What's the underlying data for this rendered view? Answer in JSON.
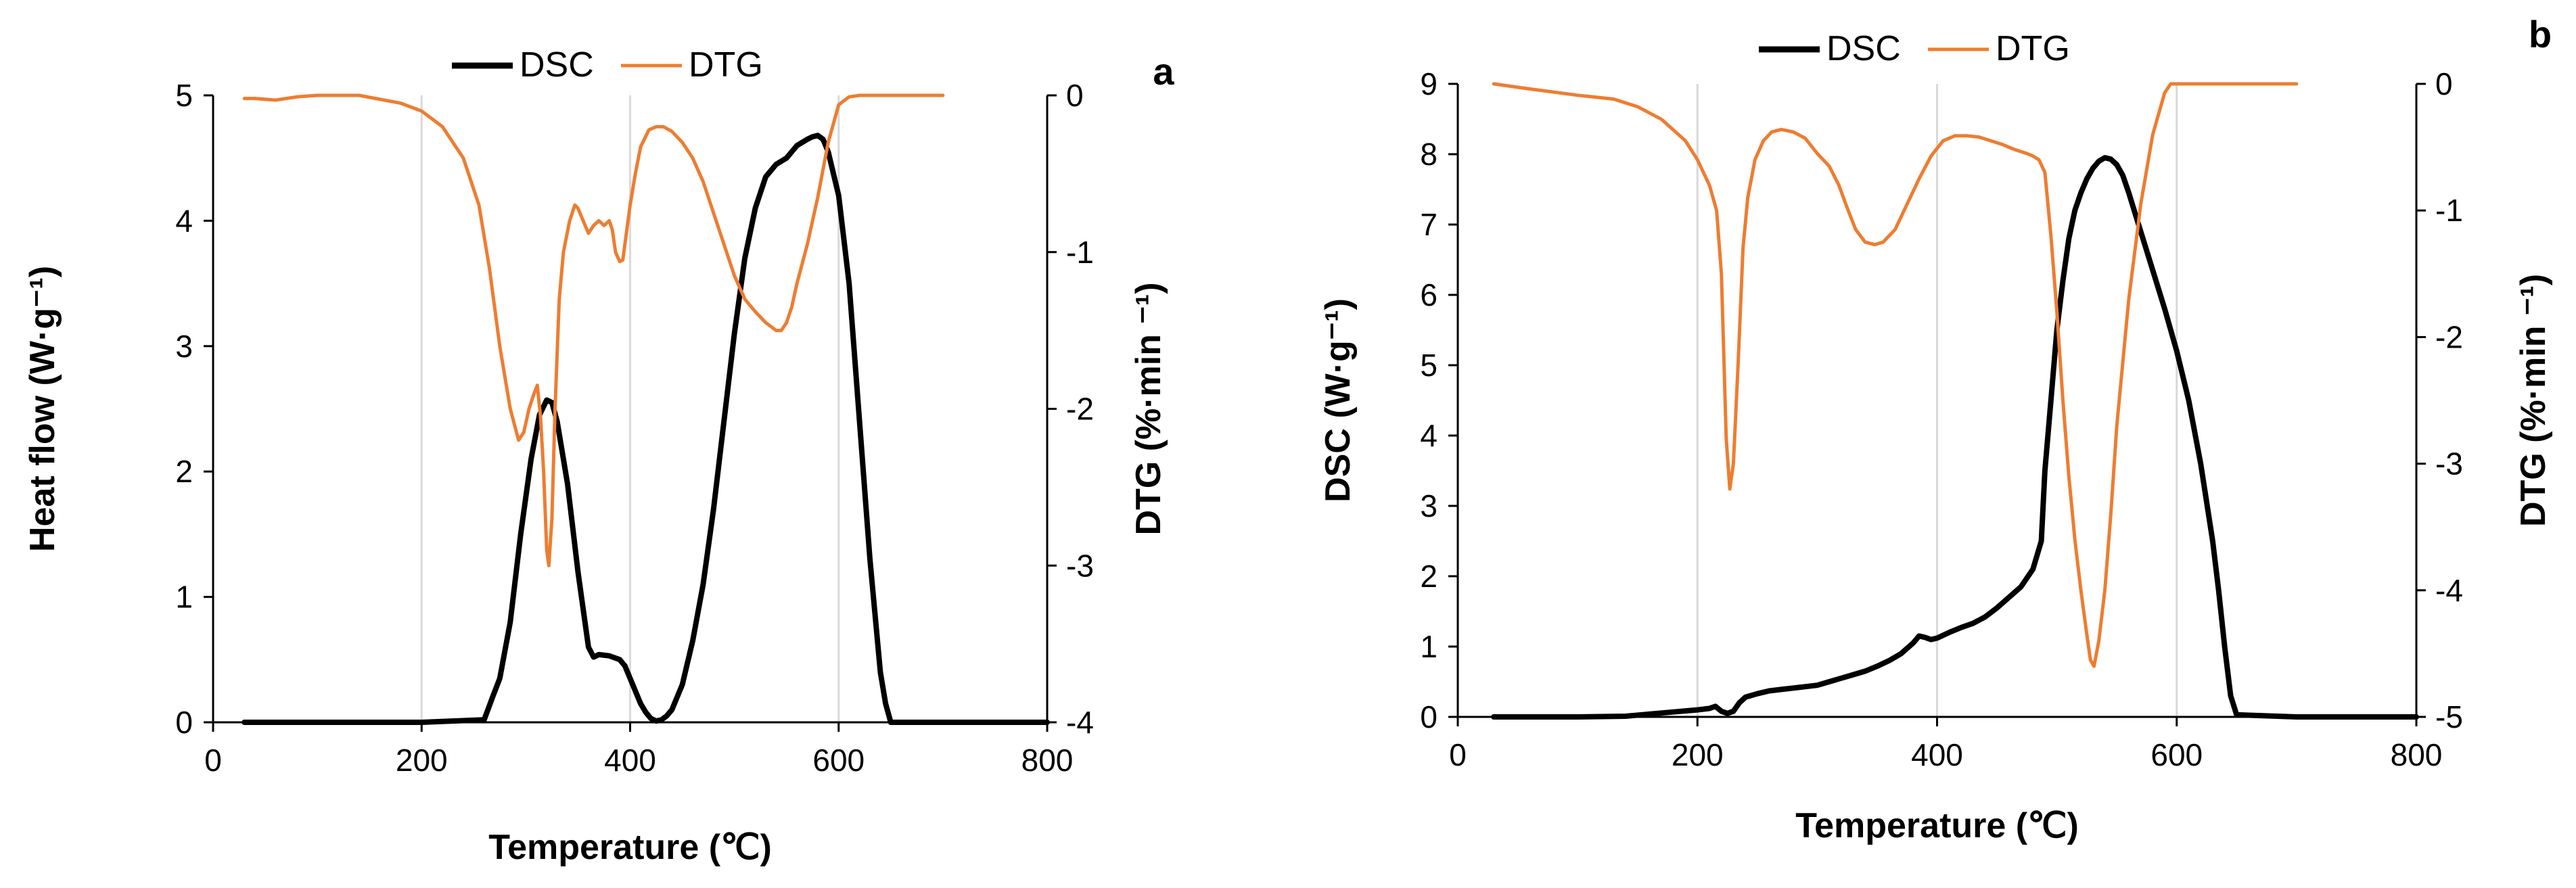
{
  "chart_data": [
    {
      "panel": "a",
      "type": "line",
      "title": "",
      "xlabel": "Temperature (℃)",
      "ylabel": "Heat flow (W·g⁻¹)",
      "y2label": "DTG (%·min ⁻¹)",
      "xlim": [
        0,
        800
      ],
      "ylim": [
        0,
        5
      ],
      "y2lim": [
        -4,
        0
      ],
      "xticks": [
        "0",
        "200",
        "400",
        "600",
        "800"
      ],
      "yticks": [
        "0",
        "1",
        "2",
        "3",
        "4",
        "5"
      ],
      "y2ticks": [
        "-4",
        "-3",
        "-2",
        "-1",
        "0"
      ],
      "legend": [
        "DSC",
        "DTG"
      ],
      "legend_position": "top",
      "grid": "vertical",
      "series": [
        {
          "name": "DSC",
          "color": "#000000",
          "axis": "left",
          "x": [
            30,
            200,
            260,
            268,
            275,
            285,
            295,
            305,
            313,
            320,
            325,
            330,
            340,
            350,
            360,
            365,
            370,
            380,
            390,
            395,
            400,
            405,
            410,
            415,
            420,
            425,
            430,
            435,
            440,
            450,
            460,
            470,
            480,
            490,
            500,
            510,
            520,
            530,
            540,
            550,
            560,
            570,
            575,
            580,
            585,
            590,
            600,
            610,
            620,
            630,
            640,
            645,
            650,
            800
          ],
          "y": [
            0,
            0,
            0.02,
            0.2,
            0.35,
            0.8,
            1.5,
            2.1,
            2.45,
            2.57,
            2.55,
            2.4,
            1.9,
            1.2,
            0.6,
            0.52,
            0.54,
            0.53,
            0.5,
            0.45,
            0.35,
            0.25,
            0.15,
            0.08,
            0.03,
            0.01,
            0.02,
            0.05,
            0.1,
            0.3,
            0.65,
            1.1,
            1.7,
            2.4,
            3.1,
            3.7,
            4.1,
            4.35,
            4.45,
            4.5,
            4.6,
            4.65,
            4.67,
            4.68,
            4.65,
            4.55,
            4.2,
            3.5,
            2.4,
            1.3,
            0.4,
            0.15,
            0,
            0
          ]
        },
        {
          "name": "DTG",
          "color": "#ED7D31",
          "axis": "right",
          "x": [
            30,
            40,
            60,
            80,
            100,
            140,
            180,
            200,
            220,
            240,
            255,
            265,
            275,
            285,
            293,
            298,
            303,
            308,
            311,
            314,
            317,
            320,
            322,
            325,
            328,
            332,
            336,
            342,
            347,
            350,
            355,
            360,
            365,
            370,
            375,
            380,
            383,
            386,
            390,
            393,
            396,
            400,
            405,
            410,
            418,
            425,
            432,
            440,
            450,
            460,
            470,
            480,
            490,
            500,
            510,
            520,
            530,
            540,
            545,
            550,
            555,
            560,
            570,
            580,
            590,
            600,
            610,
            620,
            650,
            700
          ],
          "y": [
            -0.02,
            -0.02,
            -0.03,
            -0.01,
            0,
            0,
            -0.05,
            -0.1,
            -0.2,
            -0.4,
            -0.7,
            -1.1,
            -1.6,
            -2.0,
            -2.2,
            -2.15,
            -2.0,
            -1.9,
            -1.85,
            -2.05,
            -2.4,
            -2.9,
            -3.0,
            -2.7,
            -2.0,
            -1.3,
            -1.0,
            -0.8,
            -0.7,
            -0.72,
            -0.8,
            -0.88,
            -0.83,
            -0.8,
            -0.83,
            -0.8,
            -0.86,
            -1.0,
            -1.06,
            -1.05,
            -0.9,
            -0.7,
            -0.5,
            -0.33,
            -0.22,
            -0.2,
            -0.2,
            -0.23,
            -0.3,
            -0.4,
            -0.55,
            -0.75,
            -0.95,
            -1.15,
            -1.3,
            -1.38,
            -1.45,
            -1.5,
            -1.5,
            -1.45,
            -1.35,
            -1.2,
            -0.95,
            -0.65,
            -0.3,
            -0.06,
            -0.01,
            0,
            0,
            0
          ]
        }
      ]
    },
    {
      "panel": "b",
      "type": "line",
      "title": "",
      "xlabel": "Temperature (℃)",
      "ylabel": "DSC  (W·g⁻¹)",
      "y2label": "DTG (%·min ⁻¹)",
      "xlim": [
        0,
        800
      ],
      "ylim": [
        0,
        9
      ],
      "y2lim": [
        -5,
        0
      ],
      "xticks": [
        "0",
        "200",
        "400",
        "600",
        "800"
      ],
      "yticks": [
        "0",
        "1",
        "2",
        "3",
        "4",
        "5",
        "6",
        "7",
        "8",
        "9"
      ],
      "y2ticks": [
        "-5",
        "-4",
        "-3",
        "-2",
        "-1",
        "0"
      ],
      "legend": [
        "DSC",
        "DTG"
      ],
      "legend_position": "top",
      "grid": "vertical",
      "series": [
        {
          "name": "DSC",
          "color": "#000000",
          "axis": "left",
          "x": [
            30,
            100,
            140,
            160,
            180,
            200,
            210,
            215,
            220,
            225,
            230,
            235,
            240,
            250,
            260,
            270,
            280,
            290,
            300,
            310,
            320,
            330,
            340,
            350,
            360,
            370,
            380,
            385,
            390,
            395,
            400,
            410,
            420,
            430,
            440,
            450,
            460,
            470,
            480,
            487,
            490,
            495,
            500,
            505,
            510,
            515,
            520,
            525,
            530,
            535,
            540,
            545,
            550,
            555,
            560,
            570,
            580,
            590,
            600,
            610,
            620,
            630,
            635,
            640,
            645,
            650,
            700,
            800
          ],
          "y": [
            0,
            0,
            0.01,
            0.04,
            0.07,
            0.1,
            0.12,
            0.15,
            0.08,
            0.05,
            0.08,
            0.2,
            0.28,
            0.33,
            0.37,
            0.39,
            0.41,
            0.43,
            0.45,
            0.5,
            0.55,
            0.6,
            0.65,
            0.72,
            0.8,
            0.9,
            1.05,
            1.15,
            1.13,
            1.1,
            1.12,
            1.2,
            1.27,
            1.33,
            1.42,
            1.55,
            1.7,
            1.85,
            2.1,
            2.5,
            3.5,
            4.5,
            5.5,
            6.2,
            6.8,
            7.2,
            7.45,
            7.65,
            7.8,
            7.9,
            7.95,
            7.93,
            7.85,
            7.7,
            7.45,
            6.9,
            6.35,
            5.8,
            5.2,
            4.5,
            3.6,
            2.5,
            1.8,
            1.0,
            0.3,
            0.03,
            0,
            0
          ]
        },
        {
          "name": "DTG",
          "color": "#ED7D31",
          "axis": "right",
          "x": [
            30,
            60,
            100,
            130,
            150,
            170,
            190,
            200,
            210,
            216,
            220,
            224,
            227,
            230,
            234,
            238,
            242,
            248,
            255,
            262,
            270,
            280,
            290,
            300,
            310,
            318,
            325,
            332,
            340,
            348,
            355,
            365,
            375,
            385,
            395,
            405,
            415,
            425,
            435,
            445,
            455,
            465,
            475,
            480,
            485,
            490,
            495,
            500,
            505,
            510,
            515,
            520,
            525,
            528,
            531,
            535,
            540,
            545,
            550,
            560,
            570,
            580,
            590,
            595,
            600,
            650,
            700
          ],
          "y": [
            0,
            -0.04,
            -0.09,
            -0.12,
            -0.18,
            -0.28,
            -0.45,
            -0.6,
            -0.8,
            -1.0,
            -1.5,
            -2.8,
            -3.2,
            -3.0,
            -2.2,
            -1.3,
            -0.9,
            -0.6,
            -0.45,
            -0.38,
            -0.36,
            -0.38,
            -0.43,
            -0.55,
            -0.65,
            -0.8,
            -0.98,
            -1.15,
            -1.25,
            -1.27,
            -1.25,
            -1.15,
            -0.95,
            -0.75,
            -0.57,
            -0.45,
            -0.41,
            -0.41,
            -0.42,
            -0.45,
            -0.48,
            -0.52,
            -0.55,
            -0.57,
            -0.6,
            -0.7,
            -1.2,
            -1.8,
            -2.5,
            -3.1,
            -3.6,
            -4.0,
            -4.35,
            -4.55,
            -4.6,
            -4.4,
            -4.0,
            -3.4,
            -2.7,
            -1.7,
            -0.95,
            -0.4,
            -0.07,
            0,
            0,
            0,
            0
          ]
        }
      ]
    }
  ]
}
